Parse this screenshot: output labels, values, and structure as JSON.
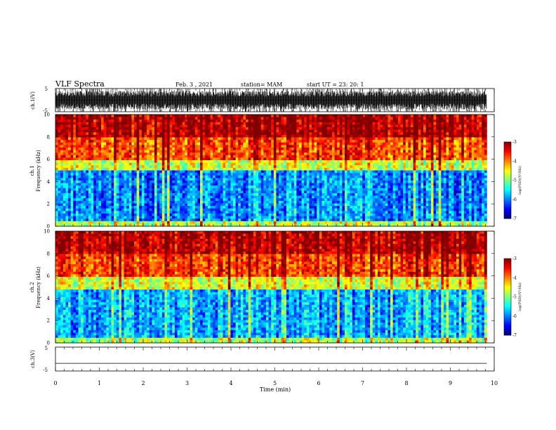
{
  "header": {
    "title": "VLF Spectra",
    "date": "Feb. 3  , 2021",
    "station": "station= MAM",
    "start": "start  UT  =   23: 20: 1"
  },
  "chart_data": [
    {
      "type": "line",
      "name": "ch1-waveform",
      "ylabel": "ch.1(V)",
      "ylim": [
        -5,
        5
      ],
      "yticks": [
        "5",
        "-5"
      ],
      "description_of_signal": "dense impulsive waveform spanning most of range",
      "xlim": [
        0,
        10
      ]
    },
    {
      "type": "heatmap",
      "name": "ch1-spectrogram",
      "ylabel": "ch.1\nFrequency (kHz)",
      "ylabel_lines": [
        "ch.1",
        "Frequency  (kHz)"
      ],
      "ylim": [
        0,
        10
      ],
      "yticks": [
        "0",
        "2",
        "4",
        "6",
        "8",
        "10"
      ],
      "xlim": [
        0,
        9.83
      ],
      "band_levels": [
        {
          "f_from": 0,
          "f_to": 0.5,
          "level": -4.8
        },
        {
          "f_from": 0.5,
          "f_to": 4.9,
          "level": -6.0
        },
        {
          "f_from": 4.9,
          "f_to": 6.0,
          "level": -4.7
        },
        {
          "f_from": 6.0,
          "f_to": 8.0,
          "level": -3.8
        },
        {
          "f_from": 8.0,
          "f_to": 10.0,
          "level": -3.2
        }
      ],
      "colorbar": {
        "label": "log(PSD)(V²/Hz)",
        "ticks": [
          "-3",
          "-4",
          "-5",
          "-6",
          "-7"
        ],
        "range": [
          -7,
          -3
        ]
      }
    },
    {
      "type": "heatmap",
      "name": "ch2-spectrogram",
      "ylabel_lines": [
        "ch.2",
        "Frequency  (kHz)"
      ],
      "ylim": [
        0,
        10
      ],
      "yticks": [
        "0",
        "2",
        "4",
        "6",
        "8",
        "10"
      ],
      "xlim": [
        0,
        9.83
      ],
      "band_levels": [
        {
          "f_from": 0,
          "f_to": 0.4,
          "level": -4.8
        },
        {
          "f_from": 0.4,
          "f_to": 4.8,
          "level": -5.8
        },
        {
          "f_from": 4.8,
          "f_to": 6.0,
          "level": -4.6
        },
        {
          "f_from": 6.0,
          "f_to": 8.0,
          "level": -3.7
        },
        {
          "f_from": 8.0,
          "f_to": 10.0,
          "level": -3.2
        }
      ],
      "colorbar": {
        "label": "log(PSD)(V²/Hz)",
        "ticks": [
          "-3",
          "-4",
          "-5",
          "-6",
          "-7"
        ],
        "range": [
          -7,
          -3
        ]
      }
    },
    {
      "type": "line",
      "name": "ch3-waveform",
      "ylabel": "ch.3(V)",
      "ylim": [
        -5,
        5
      ],
      "yticks": [
        "5",
        "-5"
      ],
      "series": [
        {
          "x": [
            0,
            9.83
          ],
          "y": [
            -1.8,
            -1.8
          ]
        }
      ],
      "xlim": [
        0,
        10
      ]
    }
  ],
  "xaxis": {
    "label": "Time  (min)",
    "ticks": [
      "0",
      "1",
      "2",
      "3",
      "4",
      "5",
      "6",
      "7",
      "8",
      "9",
      "10"
    ],
    "range": [
      0,
      10
    ]
  },
  "colors": {
    "jet": [
      "#00008f",
      "#0000ff",
      "#00ffff",
      "#00ff00",
      "#ffff00",
      "#ff0000",
      "#800000"
    ]
  }
}
